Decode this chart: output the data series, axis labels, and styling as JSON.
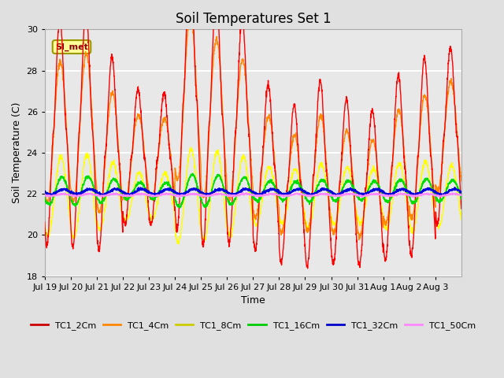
{
  "title": "Soil Temperatures Set 1",
  "xlabel": "Time",
  "ylabel": "Soil Temperature (C)",
  "ylim": [
    18,
    30
  ],
  "yticks": [
    18,
    20,
    22,
    24,
    26,
    28,
    30
  ],
  "bg_color": "#e0e0e0",
  "plot_bg_color": "#e8e8e8",
  "grid_color": "white",
  "annotation_text": "SI_met",
  "annotation_bg": "#ffff99",
  "annotation_border": "#999900",
  "annotation_text_color": "#880000",
  "series_colors": {
    "TC1_2Cm": "#ff0000",
    "TC1_4Cm": "#ff8800",
    "TC1_8Cm": "#ffff00",
    "TC1_16Cm": "#00dd00",
    "TC1_32Cm": "#0000dd",
    "TC1_50Cm": "#ff88ff"
  },
  "legend_line_colors": [
    "#cc0000",
    "#ff8800",
    "#cccc00",
    "#00cc00",
    "#0000cc",
    "#ff88ff"
  ],
  "n_days": 16,
  "pts_per_day": 144,
  "x_tick_labels": [
    "Jul 19",
    "Jul 20",
    "Jul 21",
    "Jul 22",
    "Jul 23",
    "Jul 24",
    "Jul 25",
    "Jul 26",
    "Jul 27",
    "Jul 28",
    "Jul 29",
    "Jul 30",
    "Jul 31",
    "Aug 1",
    "Aug 2",
    "Aug 3"
  ],
  "peak_amps_2cm": [
    5.5,
    5.8,
    4.7,
    3.3,
    3.2,
    6.5,
    6.2,
    5.5,
    4.0,
    3.8,
    4.5,
    4.0,
    3.8,
    4.5,
    4.8,
    4.3
  ],
  "trough_2cm": [
    19.5,
    19.4,
    19.3,
    20.5,
    20.5,
    20.2,
    19.5,
    19.6,
    19.3,
    18.7,
    18.5,
    18.6,
    18.5,
    18.8,
    19.0,
    20.5
  ],
  "base_temp": 21.9
}
